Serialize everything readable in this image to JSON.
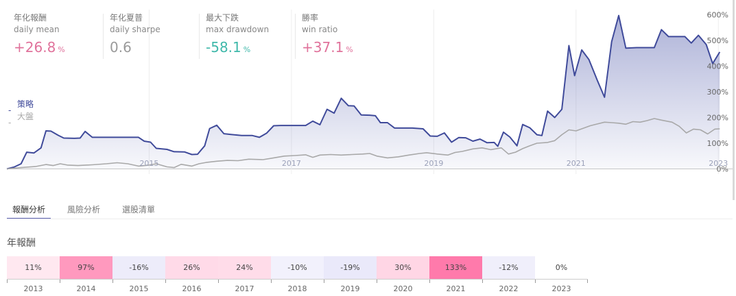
{
  "metrics": [
    {
      "label_zh": "年化報酬",
      "label_en": "daily mean",
      "value": "+26.8",
      "unit": "%",
      "color": "#e0729b"
    },
    {
      "label_zh": "年化夏普",
      "label_en": "daily sharpe",
      "value": "0.6",
      "unit": "",
      "color": "#9a9a9a"
    },
    {
      "label_zh": "最大下跌",
      "label_en": "max drawdown",
      "value": "-58.1",
      "unit": "%",
      "color": "#3fb8aa"
    },
    {
      "label_zh": "勝率",
      "label_en": "win ratio",
      "value": "+37.1",
      "unit": "%",
      "color": "#e0729b"
    }
  ],
  "legend": [
    {
      "marker": "-",
      "label": "策略",
      "color": "#3f4a9a"
    },
    {
      "marker": "-",
      "label": "大盤",
      "color": "#a8a8a8"
    }
  ],
  "tabs": [
    {
      "label": "報酬分析",
      "active": true
    },
    {
      "label": "風險分析",
      "active": false
    },
    {
      "label": "選股清單",
      "active": false
    }
  ],
  "annual_title": "年報酬",
  "chart_data": {
    "type": "area",
    "x_tick_labels": [
      {
        "x": 2015,
        "label": "2015"
      },
      {
        "x": 2017,
        "label": "2017"
      },
      {
        "x": 2019,
        "label": "2019"
      },
      {
        "x": 2021,
        "label": "2021"
      },
      {
        "x": 2023,
        "label": "2023"
      }
    ],
    "y_ticks": [
      0,
      100,
      200,
      300,
      400,
      500,
      600
    ],
    "y_tick_labels": [
      "0%",
      "100%",
      "200%",
      "300%",
      "400%",
      "500%",
      "600%"
    ],
    "xlim": [
      2013.0,
      2023.2
    ],
    "ylim": [
      -20,
      620
    ],
    "series": [
      {
        "color": "#3f4a9a",
        "fill": true,
        "points": [
          [
            2013.0,
            0
          ],
          [
            2013.1,
            7
          ],
          [
            2013.2,
            20
          ],
          [
            2013.28,
            65
          ],
          [
            2013.38,
            62
          ],
          [
            2013.48,
            82
          ],
          [
            2013.55,
            148
          ],
          [
            2013.62,
            147
          ],
          [
            2013.72,
            131
          ],
          [
            2013.8,
            120
          ],
          [
            2013.95,
            119
          ],
          [
            2014.03,
            120
          ],
          [
            2014.1,
            146
          ],
          [
            2014.2,
            123
          ],
          [
            2014.3,
            123
          ],
          [
            2014.5,
            123
          ],
          [
            2014.7,
            123
          ],
          [
            2014.85,
            123
          ],
          [
            2014.93,
            108
          ],
          [
            2015.02,
            104
          ],
          [
            2015.1,
            80
          ],
          [
            2015.25,
            76
          ],
          [
            2015.35,
            67
          ],
          [
            2015.5,
            66
          ],
          [
            2015.6,
            56
          ],
          [
            2015.68,
            57
          ],
          [
            2015.78,
            90
          ],
          [
            2015.85,
            157
          ],
          [
            2015.95,
            170
          ],
          [
            2016.05,
            137
          ],
          [
            2016.15,
            134
          ],
          [
            2016.3,
            130
          ],
          [
            2016.45,
            130
          ],
          [
            2016.55,
            123
          ],
          [
            2016.65,
            139
          ],
          [
            2016.75,
            168
          ],
          [
            2016.85,
            169
          ],
          [
            2016.95,
            169
          ],
          [
            2017.05,
            169
          ],
          [
            2017.2,
            169
          ],
          [
            2017.3,
            186
          ],
          [
            2017.4,
            172
          ],
          [
            2017.5,
            232
          ],
          [
            2017.6,
            217
          ],
          [
            2017.7,
            275
          ],
          [
            2017.8,
            246
          ],
          [
            2017.88,
            245
          ],
          [
            2017.98,
            210
          ],
          [
            2018.1,
            209
          ],
          [
            2018.18,
            207
          ],
          [
            2018.25,
            180
          ],
          [
            2018.35,
            180
          ],
          [
            2018.45,
            159
          ],
          [
            2018.55,
            159
          ],
          [
            2018.7,
            159
          ],
          [
            2018.85,
            156
          ],
          [
            2018.95,
            128
          ],
          [
            2019.05,
            127
          ],
          [
            2019.15,
            140
          ],
          [
            2019.25,
            104
          ],
          [
            2019.35,
            122
          ],
          [
            2019.45,
            121
          ],
          [
            2019.55,
            108
          ],
          [
            2019.65,
            116
          ],
          [
            2019.75,
            102
          ],
          [
            2019.85,
            103
          ],
          [
            2019.9,
            88
          ],
          [
            2019.98,
            143
          ],
          [
            2020.07,
            124
          ],
          [
            2020.17,
            90
          ],
          [
            2020.25,
            173
          ],
          [
            2020.35,
            160
          ],
          [
            2020.45,
            133
          ],
          [
            2020.52,
            130
          ],
          [
            2020.6,
            225
          ],
          [
            2020.7,
            200
          ],
          [
            2020.8,
            232
          ],
          [
            2020.9,
            480
          ],
          [
            2020.98,
            363
          ],
          [
            2021.08,
            463
          ],
          [
            2021.18,
            426
          ],
          [
            2021.3,
            344
          ],
          [
            2021.4,
            279
          ],
          [
            2021.5,
            495
          ],
          [
            2021.6,
            597
          ],
          [
            2021.7,
            470
          ],
          [
            2021.85,
            472
          ],
          [
            2022.0,
            472
          ],
          [
            2022.1,
            472
          ],
          [
            2022.2,
            542
          ],
          [
            2022.3,
            515
          ],
          [
            2022.45,
            515
          ],
          [
            2022.53,
            515
          ],
          [
            2022.62,
            490
          ],
          [
            2022.72,
            520
          ],
          [
            2022.83,
            484
          ],
          [
            2022.92,
            410
          ],
          [
            2023.02,
            455
          ]
        ]
      },
      {
        "color": "#a8a8a8",
        "fill": false,
        "points": [
          [
            2013.0,
            0
          ],
          [
            2013.2,
            5
          ],
          [
            2013.4,
            9
          ],
          [
            2013.55,
            17
          ],
          [
            2013.65,
            13
          ],
          [
            2013.75,
            20
          ],
          [
            2013.85,
            15
          ],
          [
            2014.0,
            13
          ],
          [
            2014.2,
            16
          ],
          [
            2014.4,
            20
          ],
          [
            2014.55,
            24
          ],
          [
            2014.7,
            20
          ],
          [
            2014.85,
            11
          ],
          [
            2015.0,
            15
          ],
          [
            2015.1,
            20
          ],
          [
            2015.25,
            8
          ],
          [
            2015.35,
            5
          ],
          [
            2015.45,
            18
          ],
          [
            2015.6,
            11
          ],
          [
            2015.7,
            20
          ],
          [
            2015.8,
            25
          ],
          [
            2015.95,
            30
          ],
          [
            2016.1,
            33
          ],
          [
            2016.25,
            32
          ],
          [
            2016.4,
            38
          ],
          [
            2016.6,
            36
          ],
          [
            2016.75,
            43
          ],
          [
            2016.9,
            50
          ],
          [
            2017.05,
            52
          ],
          [
            2017.2,
            55
          ],
          [
            2017.3,
            45
          ],
          [
            2017.4,
            54
          ],
          [
            2017.55,
            56
          ],
          [
            2017.7,
            54
          ],
          [
            2017.85,
            56
          ],
          [
            2018.0,
            58
          ],
          [
            2018.1,
            60
          ],
          [
            2018.2,
            50
          ],
          [
            2018.35,
            43
          ],
          [
            2018.5,
            47
          ],
          [
            2018.65,
            54
          ],
          [
            2018.8,
            60
          ],
          [
            2018.9,
            63
          ],
          [
            2019.05,
            58
          ],
          [
            2019.2,
            54
          ],
          [
            2019.3,
            64
          ],
          [
            2019.4,
            68
          ],
          [
            2019.55,
            78
          ],
          [
            2019.68,
            82
          ],
          [
            2019.8,
            75
          ],
          [
            2019.95,
            82
          ],
          [
            2020.05,
            58
          ],
          [
            2020.15,
            65
          ],
          [
            2020.25,
            79
          ],
          [
            2020.35,
            90
          ],
          [
            2020.45,
            100
          ],
          [
            2020.6,
            103
          ],
          [
            2020.7,
            110
          ],
          [
            2020.8,
            133
          ],
          [
            2020.9,
            152
          ],
          [
            2021.0,
            148
          ],
          [
            2021.1,
            158
          ],
          [
            2021.2,
            168
          ],
          [
            2021.3,
            175
          ],
          [
            2021.4,
            182
          ],
          [
            2021.5,
            180
          ],
          [
            2021.6,
            178
          ],
          [
            2021.7,
            174
          ],
          [
            2021.8,
            184
          ],
          [
            2021.9,
            182
          ],
          [
            2022.0,
            188
          ],
          [
            2022.1,
            196
          ],
          [
            2022.2,
            190
          ],
          [
            2022.35,
            182
          ],
          [
            2022.45,
            166
          ],
          [
            2022.55,
            140
          ],
          [
            2022.65,
            155
          ],
          [
            2022.75,
            152
          ],
          [
            2022.85,
            136
          ],
          [
            2022.95,
            155
          ],
          [
            2023.02,
            156
          ]
        ]
      }
    ]
  },
  "annual_returns": [
    {
      "year": "2013",
      "label": "11%",
      "value": 11
    },
    {
      "year": "2014",
      "label": "97%",
      "value": 97
    },
    {
      "year": "2015",
      "label": "-16%",
      "value": -16
    },
    {
      "year": "2016",
      "label": "26%",
      "value": 26
    },
    {
      "year": "2017",
      "label": "24%",
      "value": 24
    },
    {
      "year": "2018",
      "label": "-10%",
      "value": -10
    },
    {
      "year": "2019",
      "label": "-19%",
      "value": -19
    },
    {
      "year": "2020",
      "label": "30%",
      "value": 30
    },
    {
      "year": "2021",
      "label": "133%",
      "value": 133
    },
    {
      "year": "2022",
      "label": "-12%",
      "value": -12
    },
    {
      "year": "2023",
      "label": "0%",
      "value": 0
    }
  ],
  "colors": {
    "positive": "#ff7aab",
    "negative": "#9c96e6",
    "line": "#3f4a9a",
    "benchmark": "#a8a8a8"
  }
}
